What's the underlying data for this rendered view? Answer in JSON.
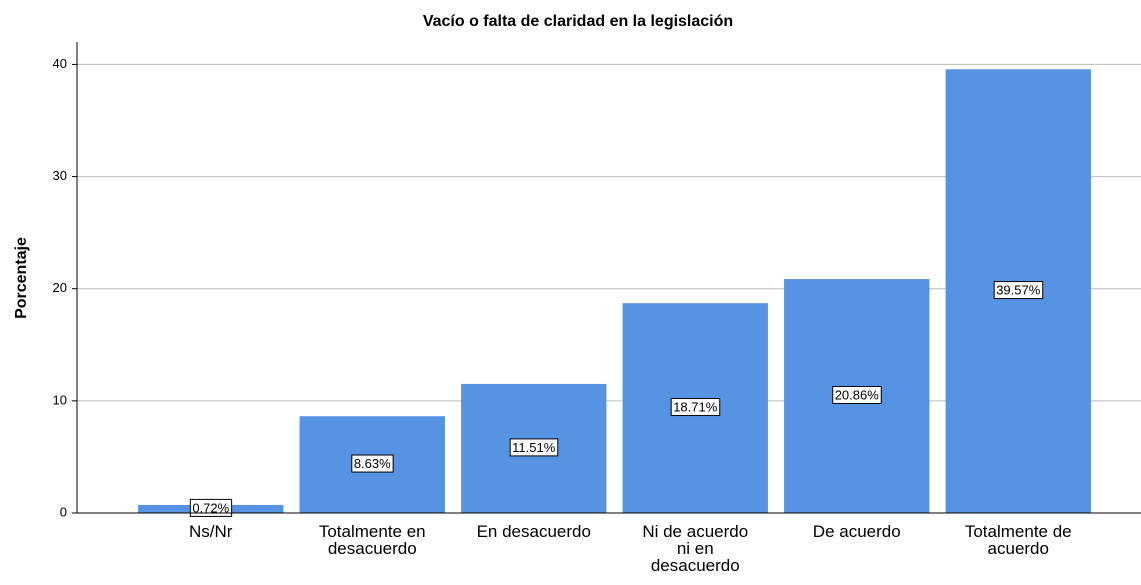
{
  "chart_data": {
    "type": "bar",
    "title": "Vacío o falta de claridad en la legislación",
    "ylabel": "Porcentaje",
    "categories": [
      "Ns/Nr",
      "Totalmente en desacuerdo",
      "En desacuerdo",
      "Ni de acuerdo ni en desacuerdo",
      "De acuerdo",
      "Totalmente de acuerdo"
    ],
    "values": [
      0.72,
      8.63,
      11.51,
      18.71,
      20.86,
      39.57
    ],
    "value_labels": [
      "0.72%",
      "8.63%",
      "11.51%",
      "18.71%",
      "20.86%",
      "39.57%"
    ],
    "color": "#5694e3",
    "ylim": [
      0,
      42
    ],
    "yticks": [
      0,
      10,
      20,
      30,
      40
    ],
    "grid": true
  }
}
